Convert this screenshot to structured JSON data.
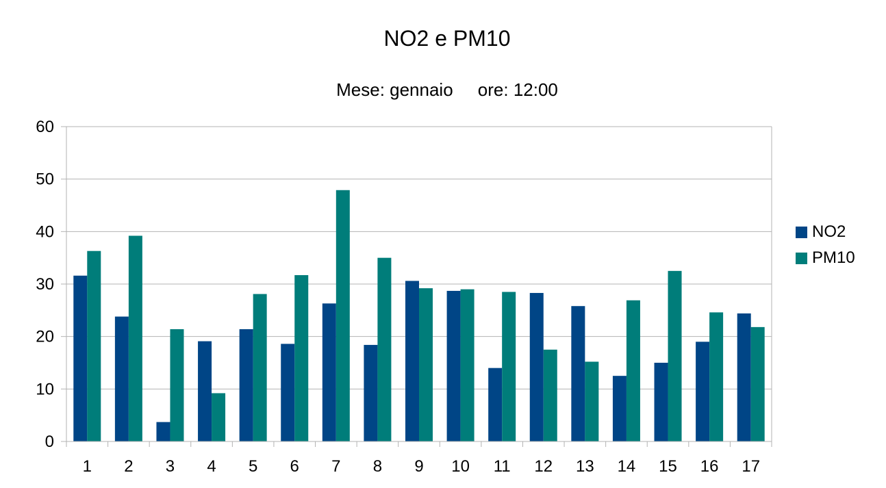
{
  "chart_data": {
    "type": "bar",
    "title": "NO2 e PM10",
    "subtitle": "Mese: gennaio     ore: 12:00",
    "xlabel": "",
    "ylabel": "",
    "categories": [
      "1",
      "2",
      "3",
      "4",
      "5",
      "6",
      "7",
      "8",
      "9",
      "10",
      "11",
      "12",
      "13",
      "14",
      "15",
      "16",
      "17"
    ],
    "series": [
      {
        "name": "NO2",
        "color": "#004586",
        "values": [
          31.6,
          23.8,
          3.7,
          19.1,
          21.4,
          18.6,
          26.3,
          18.4,
          30.6,
          28.7,
          14.0,
          28.3,
          25.8,
          12.5,
          15.0,
          19.0,
          24.4
        ]
      },
      {
        "name": "PM10",
        "color": "#007d7a",
        "values": [
          36.3,
          39.2,
          21.4,
          9.2,
          28.1,
          31.7,
          47.9,
          35.0,
          29.2,
          29.0,
          28.5,
          17.5,
          15.2,
          26.9,
          32.5,
          24.6,
          21.8
        ]
      }
    ],
    "ylim": [
      0,
      60
    ],
    "yticks": [
      0,
      10,
      20,
      30,
      40,
      50,
      60
    ],
    "grid": true,
    "legend": "right"
  }
}
